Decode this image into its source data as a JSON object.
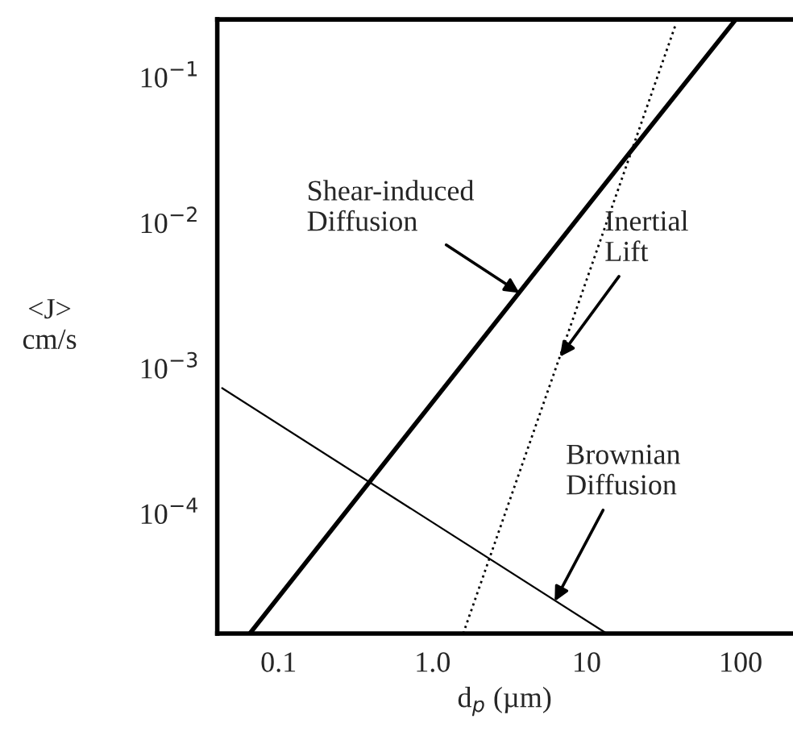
{
  "chart_data": {
    "type": "line",
    "xlabel": "d$_{p}$ (µm)",
    "ylabel": "<J>\ncm/s",
    "log": "xy",
    "grid": false,
    "legend": false,
    "marker": "none",
    "xlim": [
      0.04,
      216
    ],
    "ylim": [
      1.5e-05,
      0.25
    ],
    "xticks": [
      0.1,
      {
        "value": 1,
        "label": "1.0"
      },
      10,
      100
    ],
    "yticks": [
      {
        "value": 0.0001,
        "label": "10$^{−4}$"
      },
      {
        "value": 0.001,
        "label": "10$^{−3}$"
      },
      {
        "value": 0.01,
        "label": "10$^{−2}$"
      },
      {
        "value": 0.1,
        "label": "10$^{−1}$"
      }
    ],
    "series": [
      {
        "color": "#000000",
        "line_style": "solid",
        "x": [
          0.065,
          18.4,
          93
        ],
        "values": [
          1.5e-05,
          0.029,
          0.25
        ]
      },
      {
        "color": "#000000",
        "line_style": "dotted",
        "x": [
          1.58,
          37.8
        ],
        "values": [
          1.5e-05,
          0.23
        ]
      },
      {
        "color": "#000000",
        "line_style": "solid",
        "x": [
          0.043,
          13.5
        ],
        "values": [
          0.00073,
          1.5e-05
        ]
      }
    ],
    "annotations": [
      {
        "text": "Shear-induced\nDiffusion",
        "x": 3.66,
        "y": 0.0033
      },
      {
        "text": "Inertial\nLift",
        "x": 6.7,
        "y": 0.0012
      },
      {
        "text": "Brownian\nDiffusion",
        "x": 6.2,
        "y": 2.5e-05
      }
    ]
  }
}
